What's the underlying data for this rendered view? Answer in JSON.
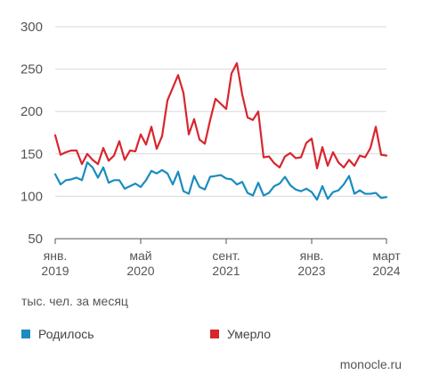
{
  "chart_data": {
    "type": "line",
    "y_ticks": [
      50,
      100,
      150,
      200,
      250,
      300
    ],
    "ylim": [
      50,
      300
    ],
    "grid": "horizontal",
    "x_ticks": [
      {
        "index": 0,
        "line1": "янв.",
        "line2": "2019"
      },
      {
        "index": 16,
        "line1": "май",
        "line2": "2020"
      },
      {
        "index": 32,
        "line1": "сент.",
        "line2": "2021"
      },
      {
        "index": 48,
        "line1": "янв.",
        "line2": "2023"
      },
      {
        "index": 62,
        "line1": "март",
        "line2": "2024"
      }
    ],
    "x_start": "2019-01",
    "x_end": "2024-03",
    "unit_label": "тыс. чел. за месяц",
    "series": [
      {
        "name": "Родилось",
        "color": "#1a8cbf",
        "values": [
          126,
          114,
          119,
          120,
          122,
          119,
          140,
          134,
          122,
          134,
          116,
          119,
          119,
          109,
          112,
          115,
          111,
          119,
          130,
          127,
          131,
          127,
          114,
          129,
          106,
          103,
          124,
          111,
          108,
          123,
          124,
          125,
          121,
          120,
          114,
          117,
          104,
          101,
          116,
          101,
          104,
          112,
          115,
          123,
          113,
          108,
          106,
          109,
          105,
          96,
          112,
          97,
          105,
          107,
          114,
          124,
          103,
          107,
          103,
          103,
          104,
          98,
          99
        ],
        "marker": "square"
      },
      {
        "name": "Умерло",
        "color": "#d8262e",
        "values": [
          172,
          149,
          152,
          154,
          154,
          138,
          150,
          143,
          138,
          157,
          142,
          148,
          165,
          143,
          154,
          153,
          173,
          161,
          182,
          156,
          171,
          213,
          228,
          243,
          222,
          173,
          191,
          167,
          162,
          190,
          215,
          209,
          203,
          245,
          257,
          220,
          193,
          190,
          200,
          146,
          147,
          139,
          134,
          147,
          151,
          145,
          146,
          163,
          168,
          133,
          158,
          136,
          152,
          140,
          134,
          143,
          136,
          148,
          146,
          157,
          182,
          149,
          148
        ],
        "marker": "square"
      }
    ]
  },
  "source": "monocle.ru"
}
